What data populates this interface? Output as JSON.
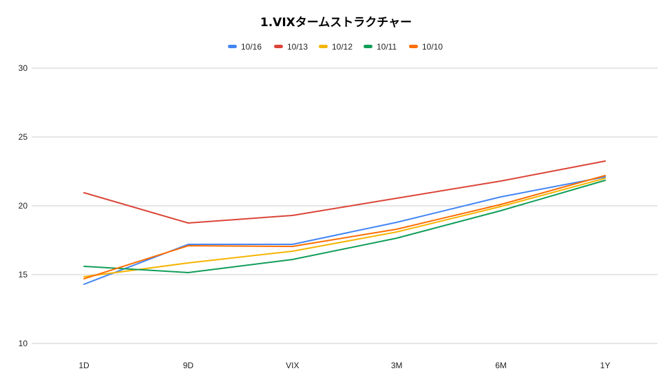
{
  "chart_data": {
    "type": "line",
    "title": "1.VIXタームストラクチャー",
    "xlabel": "",
    "ylabel": "",
    "categories": [
      "1D",
      "9D",
      "VIX",
      "3M",
      "6M",
      "1Y"
    ],
    "ylim": [
      10,
      30
    ],
    "yticks": [
      10,
      15,
      20,
      25,
      30
    ],
    "grid": true,
    "legend_position": "top",
    "series": [
      {
        "name": "10/16",
        "color": "#4285f4",
        "values": [
          14.3,
          17.2,
          17.2,
          18.8,
          20.65,
          22.1
        ]
      },
      {
        "name": "10/13",
        "color": "#db4437",
        "values": [
          20.95,
          18.75,
          19.3,
          20.55,
          21.8,
          23.25
        ]
      },
      {
        "name": "10/12",
        "color": "#f4b400",
        "values": [
          14.85,
          15.85,
          16.7,
          18.1,
          19.95,
          22.0
        ]
      },
      {
        "name": "10/11",
        "color": "#0f9d58",
        "values": [
          15.6,
          15.15,
          16.1,
          17.65,
          19.65,
          21.85
        ]
      },
      {
        "name": "10/10",
        "color": "#ff6d00",
        "values": [
          14.7,
          17.1,
          17.05,
          18.3,
          20.1,
          22.2
        ]
      }
    ]
  }
}
